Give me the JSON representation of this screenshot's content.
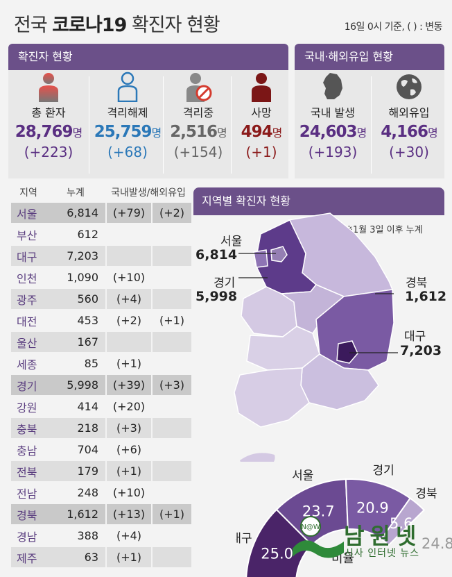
{
  "header": {
    "title_prefix": "전국",
    "title_bold": "코로나19",
    "title_suffix": "확진자 현황",
    "basis": "16일 0시 기준, ( ) : 변동"
  },
  "confirmed_panel": {
    "title": "확진자 현황",
    "stats": [
      {
        "label": "총 환자",
        "value": "28,769",
        "unit": "명",
        "change": "(+223)",
        "color": "#5a2f82",
        "icon": "person-icon"
      },
      {
        "label": "격리해제",
        "value": "25,759",
        "unit": "명",
        "change": "(+68)",
        "color": "#2b78b8",
        "icon": "person-outline-icon"
      },
      {
        "label": "격리중",
        "value": "2,516",
        "unit": "명",
        "change": "(+154)",
        "color": "#666666",
        "icon": "person-prohibited-icon"
      },
      {
        "label": "사망",
        "value": "494",
        "unit": "명",
        "change": "(+1)",
        "color": "#8b1a1a",
        "icon": "person-dark-red-icon"
      }
    ]
  },
  "origin_panel": {
    "title": "국내·해외유입 현황",
    "stats": [
      {
        "label": "국내 발생",
        "value": "24,603",
        "unit": "명",
        "change": "(+193)",
        "color": "#5a2f82",
        "icon": "korea-map-icon"
      },
      {
        "label": "해외유입",
        "value": "4,166",
        "unit": "명",
        "change": "(+30)",
        "color": "#5a2f82",
        "icon": "globe-icon"
      }
    ]
  },
  "region_table": {
    "headers": [
      "지역",
      "누계",
      "국내발생/해외유입"
    ],
    "rows": [
      {
        "name": "서울",
        "total": "6,814",
        "dom": "(+79)",
        "ovs": "(+2)"
      },
      {
        "name": "부산",
        "total": "612",
        "dom": "",
        "ovs": ""
      },
      {
        "name": "대구",
        "total": "7,203",
        "dom": "",
        "ovs": ""
      },
      {
        "name": "인천",
        "total": "1,090",
        "dom": "(+10)",
        "ovs": ""
      },
      {
        "name": "광주",
        "total": "560",
        "dom": "(+4)",
        "ovs": ""
      },
      {
        "name": "대전",
        "total": "453",
        "dom": "(+2)",
        "ovs": "(+1)"
      },
      {
        "name": "울산",
        "total": "167",
        "dom": "",
        "ovs": ""
      },
      {
        "name": "세종",
        "total": "85",
        "dom": "(+1)",
        "ovs": ""
      },
      {
        "name": "경기",
        "total": "5,998",
        "dom": "(+39)",
        "ovs": "(+3)"
      },
      {
        "name": "강원",
        "total": "414",
        "dom": "(+20)",
        "ovs": ""
      },
      {
        "name": "충북",
        "total": "218",
        "dom": "(+3)",
        "ovs": ""
      },
      {
        "name": "충남",
        "total": "704",
        "dom": "(+6)",
        "ovs": ""
      },
      {
        "name": "전북",
        "total": "179",
        "dom": "(+1)",
        "ovs": ""
      },
      {
        "name": "전남",
        "total": "248",
        "dom": "(+10)",
        "ovs": ""
      },
      {
        "name": "경북",
        "total": "1,612",
        "dom": "(+13)",
        "ovs": "(+1)"
      },
      {
        "name": "경남",
        "total": "388",
        "dom": "(+4)",
        "ovs": ""
      },
      {
        "name": "제주",
        "total": "63",
        "dom": "(+1)",
        "ovs": ""
      }
    ]
  },
  "map_panel": {
    "title": "지역별 확진자 현황",
    "note": "※1월 3일 이후 누계",
    "callouts": [
      {
        "region": "서울",
        "value": "6,814"
      },
      {
        "region": "경기",
        "value": "5,998"
      },
      {
        "region": "경북",
        "value": "1,612"
      },
      {
        "region": "대구",
        "value": "7,203"
      }
    ]
  },
  "chart_data": {
    "type": "pie",
    "title": "비율",
    "categories": [
      "대구",
      "서울",
      "경기",
      "경북"
    ],
    "values": [
      25.0,
      23.7,
      20.9,
      5.6
    ],
    "colors": [
      "#4a2468",
      "#6b4a92",
      "#7a5aa3",
      "#b8a6cf"
    ],
    "partially_hidden_value": "24.8"
  },
  "watermark": {
    "title": "남원넷",
    "subtitle": "시사 인터넷 뉴스"
  }
}
